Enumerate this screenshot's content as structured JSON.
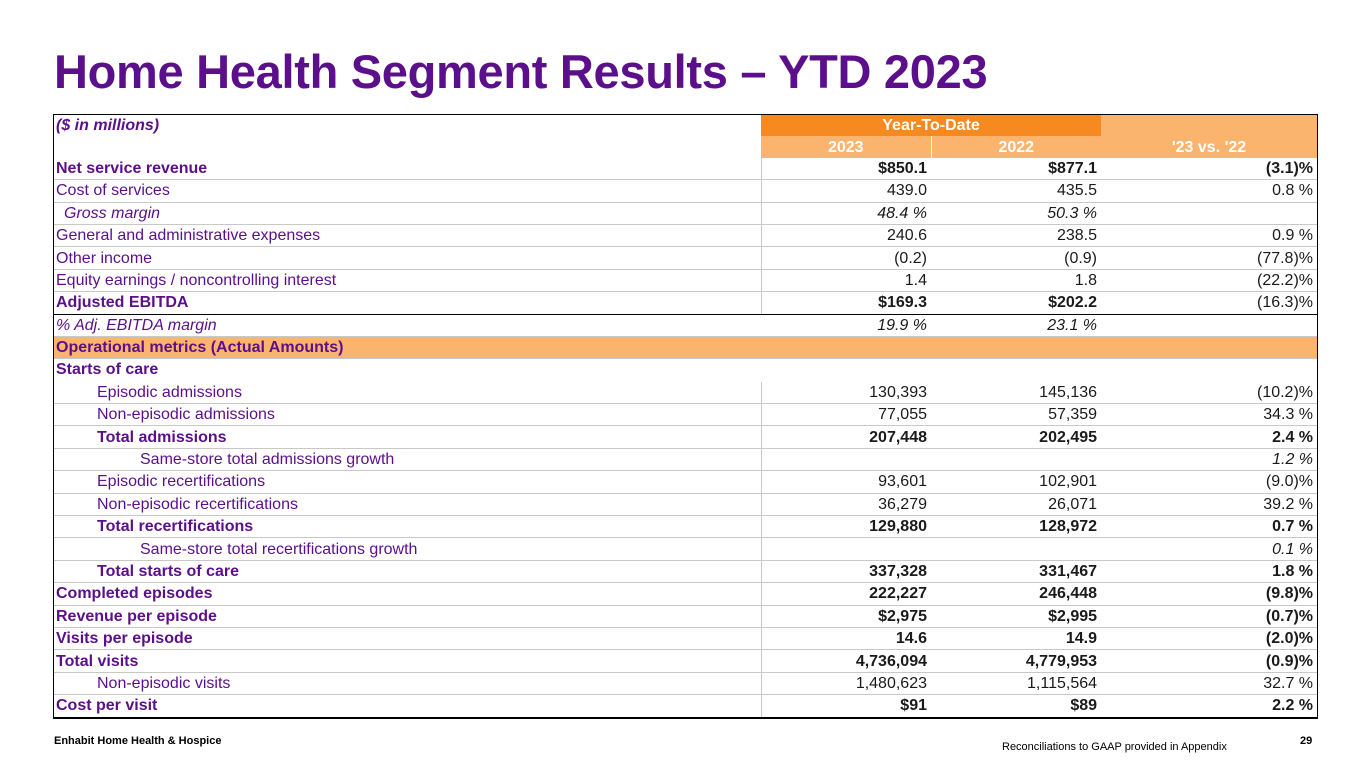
{
  "title": "Home Health Segment Results – YTD 2023",
  "table": {
    "units_label": "($ in millions)",
    "header_group": "Year-To-Date",
    "col_2023": "2023",
    "col_2022": "2022",
    "col_vs": "'23 vs. '22",
    "rows": [
      {
        "label": "Net service revenue",
        "v2023": "$850.1",
        "v2022": "$877.1",
        "vs": "(3.1)%"
      },
      {
        "label": "Cost of services",
        "v2023": "439.0",
        "v2022": "435.5",
        "vs": "0.8 %"
      },
      {
        "label": "Gross margin",
        "v2023": "48.4 %",
        "v2022": "50.3 %",
        "vs": ""
      },
      {
        "label": "General and administrative expenses",
        "v2023": "240.6",
        "v2022": "238.5",
        "vs": "0.9 %"
      },
      {
        "label": "Other income",
        "v2023": "(0.2)",
        "v2022": "(0.9)",
        "vs": "(77.8)%"
      },
      {
        "label": "Equity earnings / noncontrolling interest",
        "v2023": "1.4",
        "v2022": "1.8",
        "vs": "(22.2)%"
      },
      {
        "label": "Adjusted EBITDA",
        "v2023": "$169.3",
        "v2022": "$202.2",
        "vs": "(16.3)%"
      },
      {
        "label": "%  Adj. EBITDA margin",
        "v2023": "19.9 %",
        "v2022": "23.1 %",
        "vs": ""
      },
      {
        "label": "Operational metrics (Actual Amounts)",
        "v2023": "",
        "v2022": "",
        "vs": ""
      },
      {
        "label": "Starts of care",
        "v2023": "",
        "v2022": "",
        "vs": ""
      },
      {
        "label": "Episodic admissions",
        "v2023": "130,393",
        "v2022": "145,136",
        "vs": "(10.2)%"
      },
      {
        "label": "Non-episodic admissions",
        "v2023": "77,055",
        "v2022": "57,359",
        "vs": "34.3 %"
      },
      {
        "label": "Total admissions",
        "v2023": "207,448",
        "v2022": "202,495",
        "vs": "2.4 %"
      },
      {
        "label": "Same-store total admissions growth",
        "v2023": "",
        "v2022": "",
        "vs": "1.2 %"
      },
      {
        "label": "Episodic recertifications",
        "v2023": "93,601",
        "v2022": "102,901",
        "vs": "(9.0)%"
      },
      {
        "label": "Non-episodic recertifications",
        "v2023": "36,279",
        "v2022": "26,071",
        "vs": "39.2 %"
      },
      {
        "label": "Total recertifications",
        "v2023": "129,880",
        "v2022": "128,972",
        "vs": "0.7 %"
      },
      {
        "label": "Same-store total recertifications growth",
        "v2023": "",
        "v2022": "",
        "vs": "0.1 %"
      },
      {
        "label": "Total starts of care",
        "v2023": "337,328",
        "v2022": "331,467",
        "vs": "1.8 %"
      },
      {
        "label": "Completed episodes",
        "v2023": "222,227",
        "v2022": "246,448",
        "vs": "(9.8)%"
      },
      {
        "label": "Revenue per episode",
        "v2023": "$2,975",
        "v2022": "$2,995",
        "vs": "(0.7)%"
      },
      {
        "label": "Visits per episode",
        "v2023": "14.6",
        "v2022": "14.9",
        "vs": "(2.0)%"
      },
      {
        "label": "Total visits",
        "v2023": "4,736,094",
        "v2022": "4,779,953",
        "vs": "(0.9)%"
      },
      {
        "label": "Non-episodic visits",
        "v2023": "1,480,623",
        "v2022": "1,115,564",
        "vs": "32.7 %"
      },
      {
        "label": "Cost per visit",
        "v2023": "$91",
        "v2022": "$89",
        "vs": "2.2 %"
      }
    ]
  },
  "footer": {
    "company": "Enhabit Home Health & Hospice",
    "note": "Reconciliations to GAAP provided in Appendix",
    "page": "29"
  }
}
